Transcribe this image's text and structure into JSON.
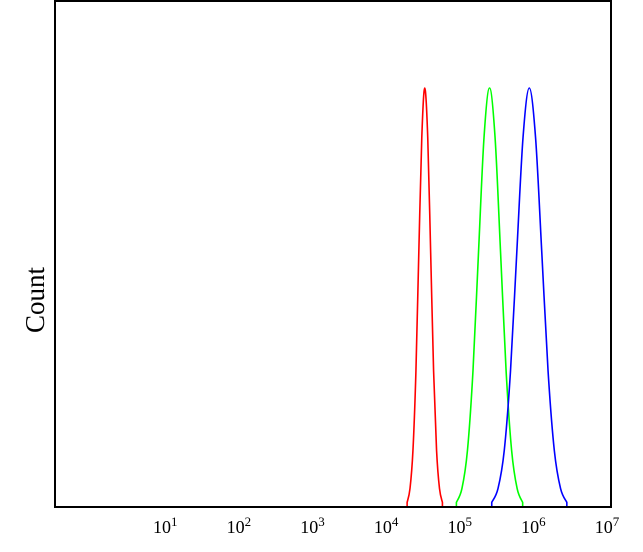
{
  "chart_data": {
    "type": "line",
    "title": "",
    "xlabel": "",
    "ylabel": "Count",
    "xscale": "log",
    "xlim": [
      0.28,
      10000000
    ],
    "ylim": [
      0,
      121
    ],
    "grid": false,
    "legend": "none",
    "x_ticks": [
      {
        "base": "10",
        "exp": "1",
        "value": 10
      },
      {
        "base": "10",
        "exp": "2",
        "value": 100
      },
      {
        "base": "10",
        "exp": "3",
        "value": 1000
      },
      {
        "base": "10",
        "exp": "4",
        "value": 10000
      },
      {
        "base": "10",
        "exp": "5",
        "value": 100000
      },
      {
        "base": "10",
        "exp": "6",
        "value": 1000000
      },
      {
        "base": "10",
        "exp": "7",
        "value": 10000000
      }
    ],
    "series": [
      {
        "color": "#ff0000",
        "x": [
          17000,
          18600,
          20400,
          22400,
          24500,
          26900,
          29500,
          32400,
          35500,
          38900,
          42700,
          46800,
          51300
        ],
        "y": [
          1.1,
          4.4,
          13.5,
          32.5,
          60.7,
          88.2,
          100,
          88.2,
          60.7,
          32.5,
          13.5,
          4.4,
          1.1
        ]
      },
      {
        "color": "#00ff00",
        "x": [
          79400,
          94400,
          112200,
          133400,
          158500,
          188400,
          223900,
          266100,
          316200,
          375800,
          446700,
          530900,
          631000
        ],
        "y": [
          1.1,
          4.4,
          13.5,
          32.5,
          60.7,
          88.2,
          100,
          88.2,
          60.7,
          32.5,
          13.5,
          4.4,
          1.1
        ]
      },
      {
        "color": "#0000ff",
        "x": [
          239900,
          291700,
          354800,
          431500,
          524800,
          638300,
          776200,
          944100,
          1148000,
          1396000,
          1698000,
          2065000,
          2512000
        ],
        "y": [
          1.1,
          4.4,
          13.5,
          32.5,
          60.7,
          88.2,
          100,
          88.2,
          60.7,
          32.5,
          13.5,
          4.4,
          1.1
        ]
      }
    ]
  }
}
